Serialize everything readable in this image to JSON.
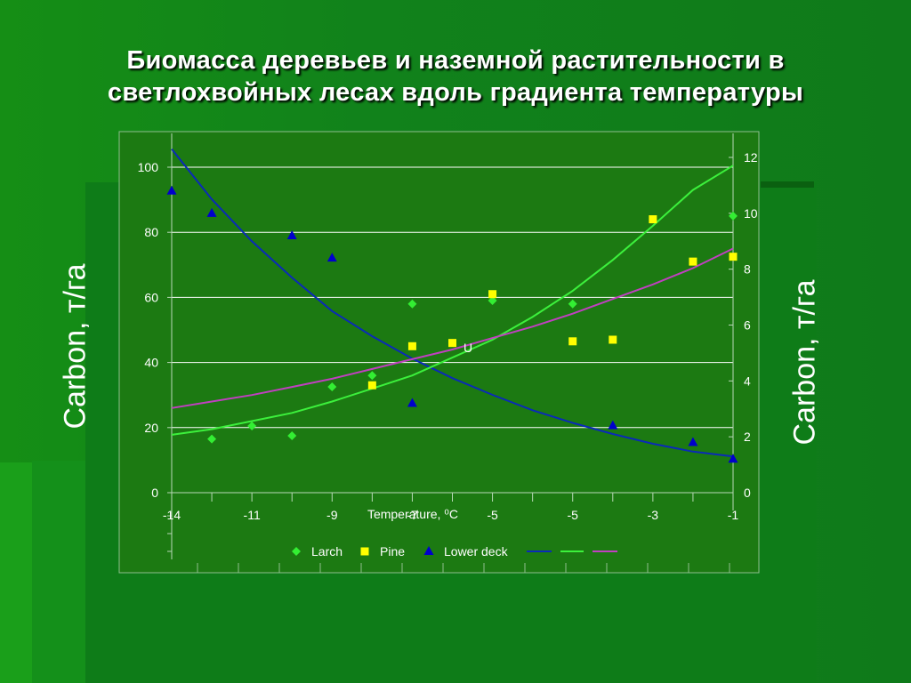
{
  "title": {
    "line1": "Биомасса деревьев и наземной растительности в",
    "line2": "светлохвойных лесах вдоль градиента температуры"
  },
  "colors": {
    "background": "#138a1a",
    "plot_area": "#1b7a13",
    "larch": "#33ee33",
    "pine": "#ffff00",
    "lower_deck": "#0000cc",
    "curve_blue": "#0a2ab8",
    "curve_green": "#3cf03c",
    "curve_magenta": "#c040c0"
  },
  "chart_data": {
    "type": "scatter",
    "title": "",
    "xlabel": "Temperature, ⁰C",
    "ylabel_left": "Carbon, т/га",
    "ylabel_right": "Carbon, т/га",
    "x_tick_labels": [
      "-14",
      "-11",
      "-9",
      "-7",
      "-5",
      "-5",
      "-3",
      "-1"
    ],
    "annotation": "U",
    "ylim_left": [
      0,
      100
    ],
    "yticks_left": [
      0,
      20,
      40,
      60,
      80,
      100
    ],
    "ylim_right": [
      0,
      12
    ],
    "yticks_right": [
      0,
      2,
      4,
      6,
      8,
      10,
      12
    ],
    "xlim": [
      -14,
      0
    ],
    "grid": true,
    "legend_position": "bottom",
    "series": [
      {
        "name": "Larch",
        "marker": "diamond",
        "axis": "left",
        "points": [
          [
            -13,
            16.5
          ],
          [
            -12,
            20.5
          ],
          [
            -11,
            17.5
          ],
          [
            -10,
            32.5
          ],
          [
            -9,
            36
          ],
          [
            -8,
            58
          ],
          [
            -6,
            59
          ],
          [
            -4,
            58
          ],
          [
            0,
            85
          ]
        ]
      },
      {
        "name": "Pine",
        "marker": "square",
        "axis": "left",
        "points": [
          [
            -9,
            33
          ],
          [
            -8,
            45
          ],
          [
            -7,
            46
          ],
          [
            -6,
            61
          ],
          [
            -4,
            46.5
          ],
          [
            -3,
            47
          ],
          [
            -2,
            84
          ],
          [
            -1,
            71
          ],
          [
            0,
            72.5
          ]
        ]
      },
      {
        "name": "Lower deck",
        "marker": "triangle",
        "axis": "right",
        "points": [
          [
            -14,
            10.8
          ],
          [
            -13,
            10.0
          ],
          [
            -11,
            9.2
          ],
          [
            -10,
            8.4
          ],
          [
            -8,
            3.2
          ],
          [
            -3,
            2.4
          ],
          [
            -1,
            1.8
          ],
          [
            0,
            1.2
          ]
        ]
      },
      {
        "name": "",
        "type": "line",
        "axis": "right",
        "points": [
          [
            -14,
            12.3
          ],
          [
            -13,
            10.5
          ],
          [
            -12,
            9.0
          ],
          [
            -11,
            7.7
          ],
          [
            -10,
            6.5
          ],
          [
            -9,
            5.6
          ],
          [
            -8,
            4.8
          ],
          [
            -7,
            4.1
          ],
          [
            -6,
            3.5
          ],
          [
            -5,
            2.95
          ],
          [
            -4,
            2.5
          ],
          [
            -3,
            2.1
          ],
          [
            -2,
            1.75
          ],
          [
            -1,
            1.47
          ],
          [
            0,
            1.3
          ]
        ]
      },
      {
        "name": "",
        "type": "line",
        "axis": "left",
        "points": [
          [
            -14,
            17.8
          ],
          [
            -13,
            19.5
          ],
          [
            -12,
            22
          ],
          [
            -11,
            24.5
          ],
          [
            -10,
            28
          ],
          [
            -9,
            32
          ],
          [
            -8,
            36
          ],
          [
            -7,
            41.5
          ],
          [
            -6,
            47
          ],
          [
            -5,
            54
          ],
          [
            -4,
            62
          ],
          [
            -3,
            71.5
          ],
          [
            -2,
            82
          ],
          [
            -1,
            93
          ],
          [
            0,
            100.5
          ]
        ]
      },
      {
        "name": "",
        "type": "line",
        "axis": "left",
        "points": [
          [
            -14,
            26
          ],
          [
            -13,
            28
          ],
          [
            -12,
            30
          ],
          [
            -11,
            32.5
          ],
          [
            -10,
            35
          ],
          [
            -9,
            38
          ],
          [
            -8,
            41
          ],
          [
            -7,
            44
          ],
          [
            -6,
            47.5
          ],
          [
            -5,
            51
          ],
          [
            -4,
            55
          ],
          [
            -3,
            59.5
          ],
          [
            -2,
            64
          ],
          [
            -1,
            69
          ],
          [
            0,
            75
          ]
        ]
      }
    ]
  }
}
